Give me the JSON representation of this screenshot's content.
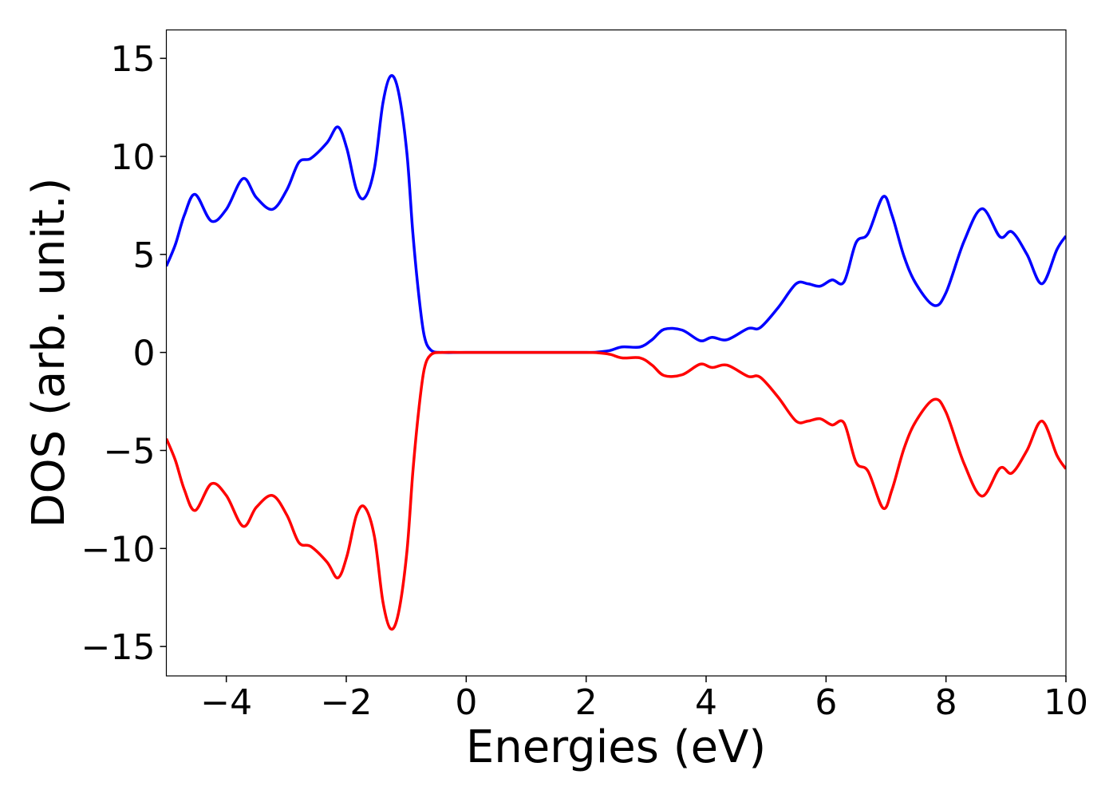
{
  "chart_data": {
    "type": "line",
    "xlabel": "Energies (eV)",
    "ylabel": "DOS (arb. unit.)",
    "x": [
      -5,
      -4.85,
      -4.7,
      -4.52,
      -4.25,
      -4.0,
      -3.72,
      -3.5,
      -3.23,
      -2.99,
      -2.79,
      -2.59,
      -2.32,
      -2.14,
      -1.99,
      -1.83,
      -1.69,
      -1.53,
      -1.39,
      -1.26,
      -1.13,
      -0.99,
      -0.89,
      -0.79,
      -0.7,
      -0.59,
      -0.4,
      0,
      1,
      2,
      2.2,
      2.4,
      2.6,
      2.9,
      3.1,
      3.3,
      3.6,
      3.9,
      4.1,
      4.35,
      4.7,
      4.9,
      5.2,
      5.5,
      5.7,
      5.9,
      6.1,
      6.3,
      6.5,
      6.7,
      6.95,
      7.1,
      7.3,
      7.5,
      7.8,
      8.0,
      8.3,
      8.6,
      8.9,
      9.1,
      9.35,
      9.6,
      9.85,
      10
    ],
    "series": [
      {
        "color": "#0000ff",
        "values": [
          4.4,
          5.5,
          7.0,
          8.06,
          6.7,
          7.3,
          8.87,
          7.9,
          7.3,
          8.3,
          9.7,
          9.9,
          10.7,
          11.5,
          10.4,
          8.3,
          7.9,
          9.4,
          12.7,
          14.1,
          13.3,
          10.2,
          6.1,
          2.9,
          0.85,
          0.12,
          0,
          0,
          0,
          0,
          0.02,
          0.1,
          0.28,
          0.28,
          0.65,
          1.18,
          1.14,
          0.6,
          0.77,
          0.65,
          1.22,
          1.26,
          2.28,
          3.5,
          3.5,
          3.38,
          3.7,
          3.6,
          5.6,
          6.06,
          7.94,
          7.0,
          4.9,
          3.5,
          2.4,
          3.05,
          5.66,
          7.33,
          5.9,
          6.15,
          5.0,
          3.5,
          5.25,
          5.94
        ]
      },
      {
        "color": "#ff0000",
        "values": [
          -4.4,
          -5.5,
          -7.0,
          -8.06,
          -6.7,
          -7.3,
          -8.87,
          -7.9,
          -7.3,
          -8.3,
          -9.7,
          -9.9,
          -10.7,
          -11.5,
          -10.4,
          -8.3,
          -7.9,
          -9.4,
          -12.7,
          -14.1,
          -13.3,
          -10.2,
          -6.1,
          -2.9,
          -0.85,
          -0.12,
          0,
          0,
          0,
          0,
          -0.02,
          -0.1,
          -0.28,
          -0.28,
          -0.65,
          -1.18,
          -1.14,
          -0.6,
          -0.77,
          -0.65,
          -1.22,
          -1.26,
          -2.28,
          -3.5,
          -3.5,
          -3.38,
          -3.7,
          -3.6,
          -5.6,
          -6.06,
          -7.94,
          -7.0,
          -4.9,
          -3.5,
          -2.4,
          -3.05,
          -5.66,
          -7.33,
          -5.9,
          -6.15,
          -5.0,
          -3.5,
          -5.25,
          -5.94
        ]
      }
    ],
    "xlim": [
      -5,
      10
    ],
    "xticks": [
      {
        "value": -4,
        "label": "−4"
      },
      {
        "value": -2,
        "label": "−2"
      },
      0,
      2,
      4,
      6,
      8,
      10
    ],
    "ylim": [
      -16.5,
      16.45
    ],
    "yticks": [
      {
        "value": -15,
        "label": "−15"
      },
      {
        "value": -10,
        "label": "−10"
      },
      {
        "value": -5,
        "label": "−5"
      },
      0,
      5,
      10,
      15
    ]
  }
}
